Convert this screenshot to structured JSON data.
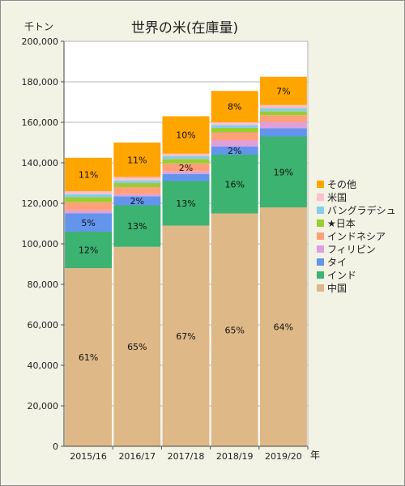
{
  "chart_data": {
    "type": "bar",
    "stacked": true,
    "title": "世界の米(在庫量)",
    "yunit": "千トン",
    "xunit": "年",
    "categories": [
      "2015/16",
      "2016/17",
      "2017/18",
      "2018/19",
      "2019/20"
    ],
    "ylim": [
      0,
      200000
    ],
    "ytick_labels": [
      "0",
      "20,000",
      "40,000",
      "60,000",
      "80,000",
      "100,000",
      "120,000",
      "140,000",
      "160,000",
      "180,000",
      "200,000"
    ],
    "grid": true,
    "legend_position": "right",
    "series": [
      {
        "name": "中国",
        "color": "#deb887",
        "values": [
          88000,
          98500,
          109000,
          115000,
          118000
        ],
        "labels": [
          "61%",
          "65%",
          "67%",
          "65%",
          "64%"
        ]
      },
      {
        "name": "インド",
        "color": "#3cb371",
        "values": [
          18000,
          20500,
          22000,
          29000,
          35000
        ],
        "labels": [
          "12%",
          "13%",
          "13%",
          "16%",
          "19%"
        ]
      },
      {
        "name": "タイ",
        "color": "#6495ed",
        "values": [
          9000,
          4500,
          3500,
          4000,
          4000
        ],
        "labels": [
          "5%",
          "2%",
          "",
          "2%",
          ""
        ]
      },
      {
        "name": "フィリピン",
        "color": "#dda0dd",
        "values": [
          1500,
          1000,
          1200,
          3000,
          3000
        ],
        "labels": [
          "",
          "",
          "",
          "",
          ""
        ]
      },
      {
        "name": "インドネシア",
        "color": "#ffa07a",
        "values": [
          4000,
          3500,
          4000,
          4000,
          3500
        ],
        "labels": [
          "",
          "",
          "2%",
          "",
          ""
        ]
      },
      {
        "name": "★日本",
        "color": "#9acd32",
        "values": [
          2500,
          2000,
          2200,
          2200,
          2000
        ],
        "labels": [
          "",
          "",
          "",
          "",
          ""
        ]
      },
      {
        "name": "バングラデシュ",
        "color": "#87ceeb",
        "values": [
          1500,
          1300,
          1300,
          1500,
          1500
        ],
        "labels": [
          "",
          "",
          "",
          "",
          ""
        ]
      },
      {
        "name": "米国",
        "color": "#ffc0cb",
        "values": [
          1500,
          1700,
          1300,
          1300,
          1500
        ],
        "labels": [
          "",
          "",
          "",
          "",
          ""
        ]
      },
      {
        "name": "その他",
        "color": "#ffa500",
        "values": [
          16500,
          17000,
          18500,
          15500,
          14000
        ],
        "labels": [
          "11%",
          "11%",
          "10%",
          "8%",
          "7%"
        ]
      }
    ]
  }
}
